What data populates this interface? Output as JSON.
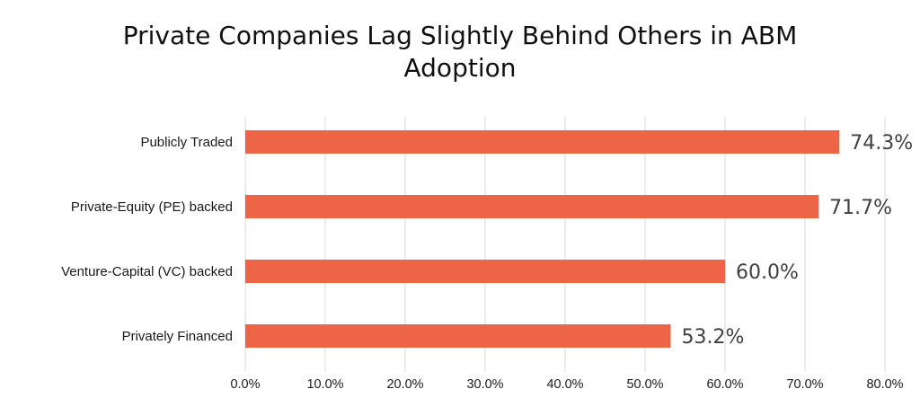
{
  "chart_data": {
    "type": "bar",
    "orientation": "horizontal",
    "title": "Private Companies Lag Slightly Behind Others in ABM Adoption",
    "title_lines": [
      "Private Companies Lag Slightly Behind Others in ABM",
      "Adoption"
    ],
    "categories": [
      "Publicly Traded",
      "Private-Equity (PE) backed",
      "Venture-Capital (VC) backed",
      "Privately Financed"
    ],
    "values": [
      74.3,
      71.7,
      60.0,
      53.2
    ],
    "data_labels": [
      "74.3%",
      "71.7%",
      "60.0%",
      "53.2%"
    ],
    "xlim": [
      0,
      80
    ],
    "x_ticks": [
      0,
      10,
      20,
      30,
      40,
      50,
      60,
      70,
      80
    ],
    "x_tick_labels": [
      "0.0%",
      "10.0%",
      "20.0%",
      "30.0%",
      "40.0%",
      "50.0%",
      "60.0%",
      "70.0%",
      "80.0%"
    ],
    "xlabel": "",
    "ylabel": "",
    "grid": "vertical",
    "legend": "none",
    "bar_color": "#ee6449"
  }
}
